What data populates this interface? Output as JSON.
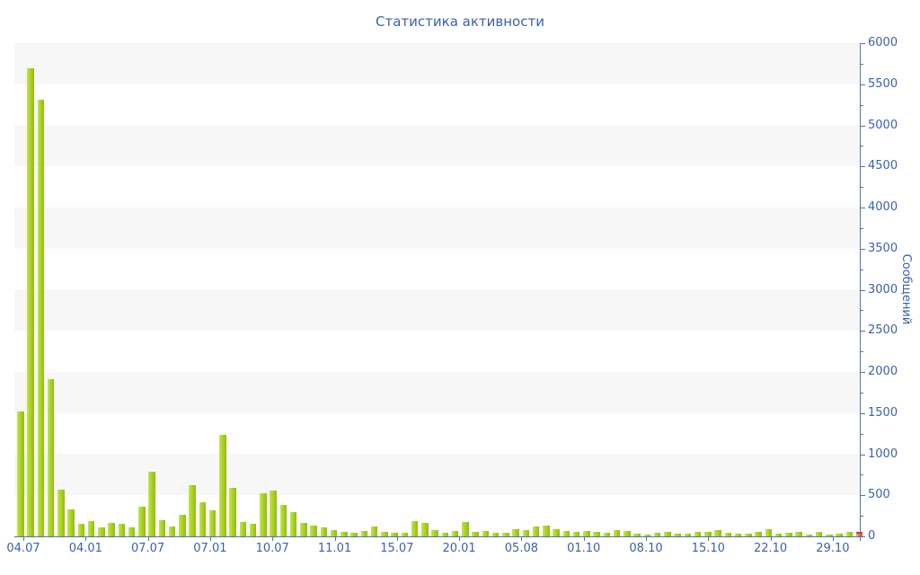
{
  "title": "Статистика активности",
  "chart_data": {
    "type": "bar",
    "title": "Статистика активности",
    "xlabel": "",
    "ylabel": "Сообщений",
    "ylim": [
      0,
      6000
    ],
    "y_tick_step": 500,
    "y_minor_tick_step": 250,
    "y_tick_labels": [
      "0",
      "500",
      "1000",
      "1500",
      "2000",
      "2500",
      "3000",
      "3500",
      "4000",
      "4500",
      "5000",
      "5500",
      "6000"
    ],
    "x_tick_labels": [
      "04.07",
      "04.01",
      "07.07",
      "07.01",
      "10.07",
      "11.01",
      "15.07",
      "20.01",
      "05.08",
      "01.10",
      "08.10",
      "15.10",
      "22.10",
      "29.10"
    ],
    "legend_position": "none",
    "grid": "alternating horizontal bands every 500 units, gray topmost",
    "series": [
      {
        "name": "Сообщений",
        "values": [
          1520,
          5690,
          5310,
          1910,
          570,
          330,
          155,
          185,
          110,
          165,
          155,
          110,
          360,
          790,
          200,
          120,
          265,
          625,
          420,
          320,
          1230,
          590,
          175,
          155,
          525,
          560,
          385,
          290,
          165,
          130,
          105,
          77,
          58,
          40,
          70,
          120,
          55,
          40,
          48,
          190,
          160,
          75,
          45,
          66,
          180,
          55,
          66,
          48,
          40,
          90,
          77,
          115,
          130,
          85,
          63,
          55,
          63,
          55,
          40,
          77,
          63,
          30,
          25,
          45,
          58,
          35,
          30,
          58,
          50,
          77,
          44,
          30,
          36,
          50,
          88,
          30,
          44,
          50,
          22,
          58,
          25,
          35,
          60,
          50
        ]
      }
    ],
    "highlight_last_bar": {
      "index": 83,
      "color": "#ee7f4e",
      "meaning": "last (rightmost) bar drawn in orange"
    }
  },
  "colors": {
    "bar_green": "#a9d428",
    "bar_orange": "#ee7f4e",
    "axis_line_blue": "#5572ae",
    "label_blue": "#3a61ae",
    "band_gray": "#f7f7f7",
    "band_white": "#ffffff",
    "background": "#ffffff"
  }
}
